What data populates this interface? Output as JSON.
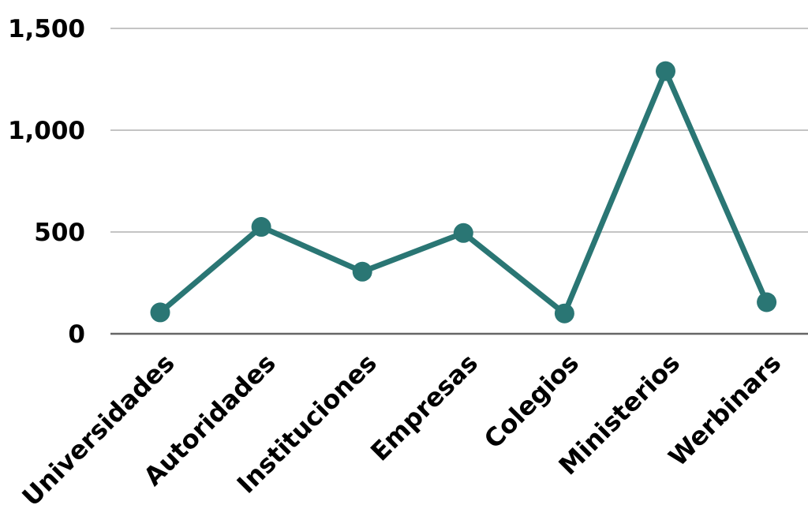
{
  "chart_data": {
    "type": "line",
    "categories": [
      "Universidades",
      "Autoridades",
      "Instituciones",
      "Empresas",
      "Colegios",
      "Ministerios",
      "Werbinars"
    ],
    "series": [
      {
        "values": [
          105,
          525,
          305,
          495,
          100,
          1290,
          155
        ]
      }
    ],
    "ylim": [
      0,
      1500
    ],
    "yticks": [
      0,
      500,
      1000,
      1500
    ],
    "ytick_labels": [
      "0",
      "500",
      "1,000",
      "1,500"
    ],
    "grid": true,
    "legend": "none",
    "colors": {
      "line": "#2a7674",
      "grid": "#c4c4c4",
      "baseline": "#666666"
    }
  }
}
